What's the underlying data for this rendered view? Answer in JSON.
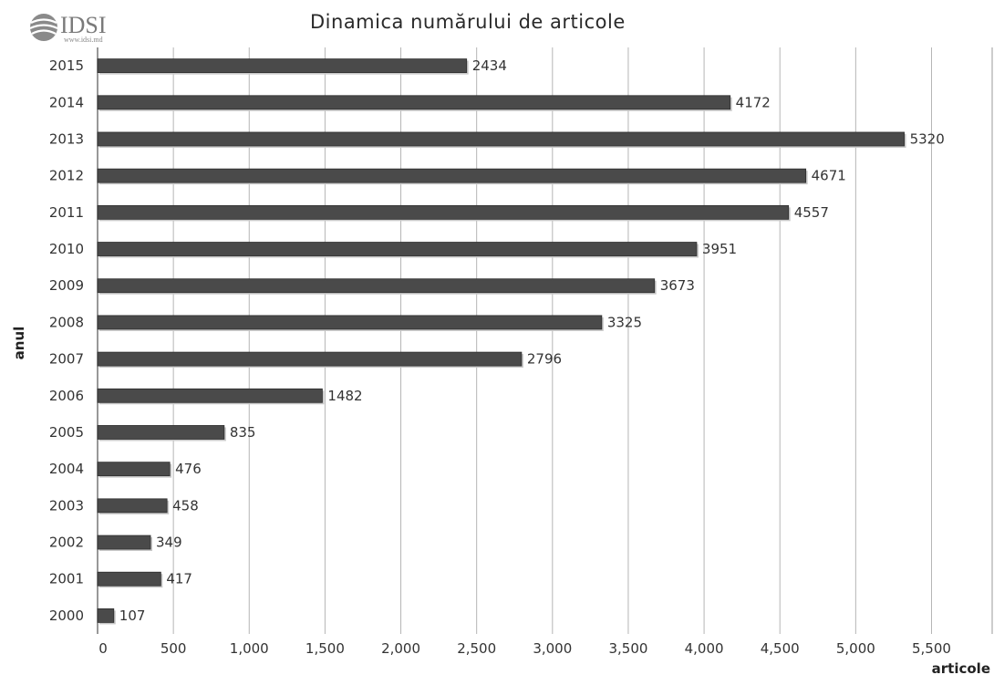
{
  "logo": {
    "text": "IDSI",
    "url_text": "www.idsi.md"
  },
  "chart_data": {
    "type": "bar",
    "orientation": "horizontal",
    "title": "Dinamica numărului de articole",
    "xlabel": "articole",
    "ylabel": "anul",
    "categories": [
      "2015",
      "2014",
      "2013",
      "2012",
      "2011",
      "2010",
      "2009",
      "2008",
      "2007",
      "2006",
      "2005",
      "2004",
      "2003",
      "2002",
      "2001",
      "2000"
    ],
    "values": [
      2434,
      4172,
      5320,
      4671,
      4557,
      3951,
      3673,
      3325,
      2796,
      1482,
      835,
      476,
      458,
      349,
      417,
      107
    ],
    "xlim": [
      0,
      5900
    ],
    "xticks": [
      0,
      500,
      1000,
      1500,
      2000,
      2500,
      3000,
      3500,
      4000,
      4500,
      5000,
      5500
    ],
    "xtick_labels": [
      "0",
      "500",
      "1,000",
      "1,500",
      "2,000",
      "2,500",
      "3,000",
      "3,500",
      "4,000",
      "4,500",
      "5,000",
      "5,500"
    ],
    "grid": true,
    "bar_color": "#4a4a4a"
  }
}
